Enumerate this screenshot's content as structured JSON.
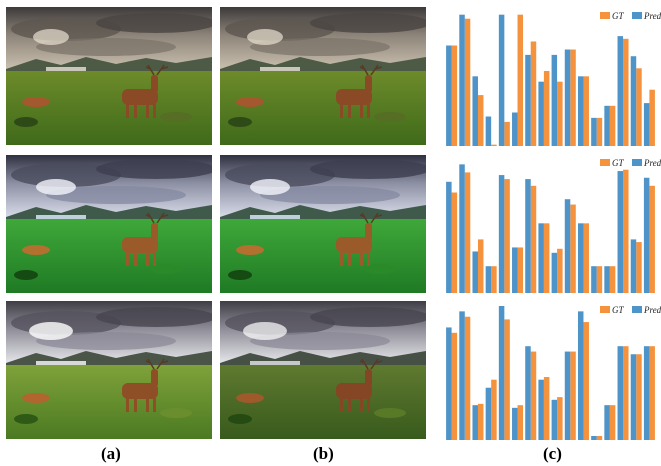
{
  "figure": {
    "captions": [
      "(a)",
      "(b)",
      "(c)"
    ],
    "photos": [
      {
        "row": 0,
        "column": "a",
        "subject": "deer-landscape",
        "tone": "warm"
      },
      {
        "row": 0,
        "column": "b",
        "subject": "deer-landscape",
        "tone": "warm"
      },
      {
        "row": 1,
        "column": "a",
        "subject": "deer-landscape",
        "tone": "vivid"
      },
      {
        "row": 1,
        "column": "b",
        "subject": "deer-landscape",
        "tone": "vivid"
      },
      {
        "row": 2,
        "column": "a",
        "subject": "deer-landscape",
        "tone": "neutral"
      },
      {
        "row": 2,
        "column": "b",
        "subject": "deer-landscape",
        "tone": "muted"
      }
    ],
    "colors": {
      "gt": "#f5923e",
      "pred": "#4f94c8"
    }
  },
  "chart_data": [
    {
      "type": "bar",
      "legend": [
        "GT",
        "Pred"
      ],
      "legend_position": "top-right",
      "grid": false,
      "ylim": [
        0,
        1
      ],
      "series": [
        {
          "name": "GT",
          "values": [
            0.75,
            0.95,
            0.38,
            0.01,
            0.18,
            0.98,
            0.78,
            0.56,
            0.48,
            0.72,
            0.52,
            0.21,
            0.3,
            0.8,
            0.58,
            0.42
          ]
        },
        {
          "name": "Pred",
          "values": [
            0.75,
            0.98,
            0.52,
            0.22,
            0.98,
            0.25,
            0.68,
            0.48,
            0.68,
            0.72,
            0.52,
            0.21,
            0.3,
            0.82,
            0.67,
            0.32
          ]
        }
      ]
    },
    {
      "type": "bar",
      "legend": [
        "GT",
        "Pred"
      ],
      "legend_position": "top-right",
      "grid": false,
      "ylim": [
        0,
        1
      ],
      "series": [
        {
          "name": "GT",
          "values": [
            0.75,
            0.9,
            0.4,
            0.2,
            0.85,
            0.34,
            0.8,
            0.52,
            0.33,
            0.66,
            0.52,
            0.2,
            0.2,
            0.92,
            0.38,
            0.8
          ]
        },
        {
          "name": "Pred",
          "values": [
            0.83,
            0.96,
            0.31,
            0.2,
            0.88,
            0.34,
            0.85,
            0.52,
            0.3,
            0.7,
            0.52,
            0.2,
            0.2,
            0.91,
            0.4,
            0.86
          ]
        }
      ]
    },
    {
      "type": "bar",
      "legend": [
        "GT",
        "Pred"
      ],
      "legend_position": "top-right",
      "grid": false,
      "ylim": [
        0,
        1
      ],
      "series": [
        {
          "name": "GT",
          "values": [
            0.8,
            0.92,
            0.27,
            0.45,
            0.9,
            0.26,
            0.66,
            0.47,
            0.32,
            0.66,
            0.88,
            0.03,
            0.26,
            0.7,
            0.64,
            0.7
          ]
        },
        {
          "name": "Pred",
          "values": [
            0.84,
            0.96,
            0.26,
            0.39,
            1.0,
            0.24,
            0.7,
            0.45,
            0.3,
            0.66,
            0.96,
            0.03,
            0.26,
            0.7,
            0.64,
            0.7
          ]
        }
      ]
    }
  ]
}
